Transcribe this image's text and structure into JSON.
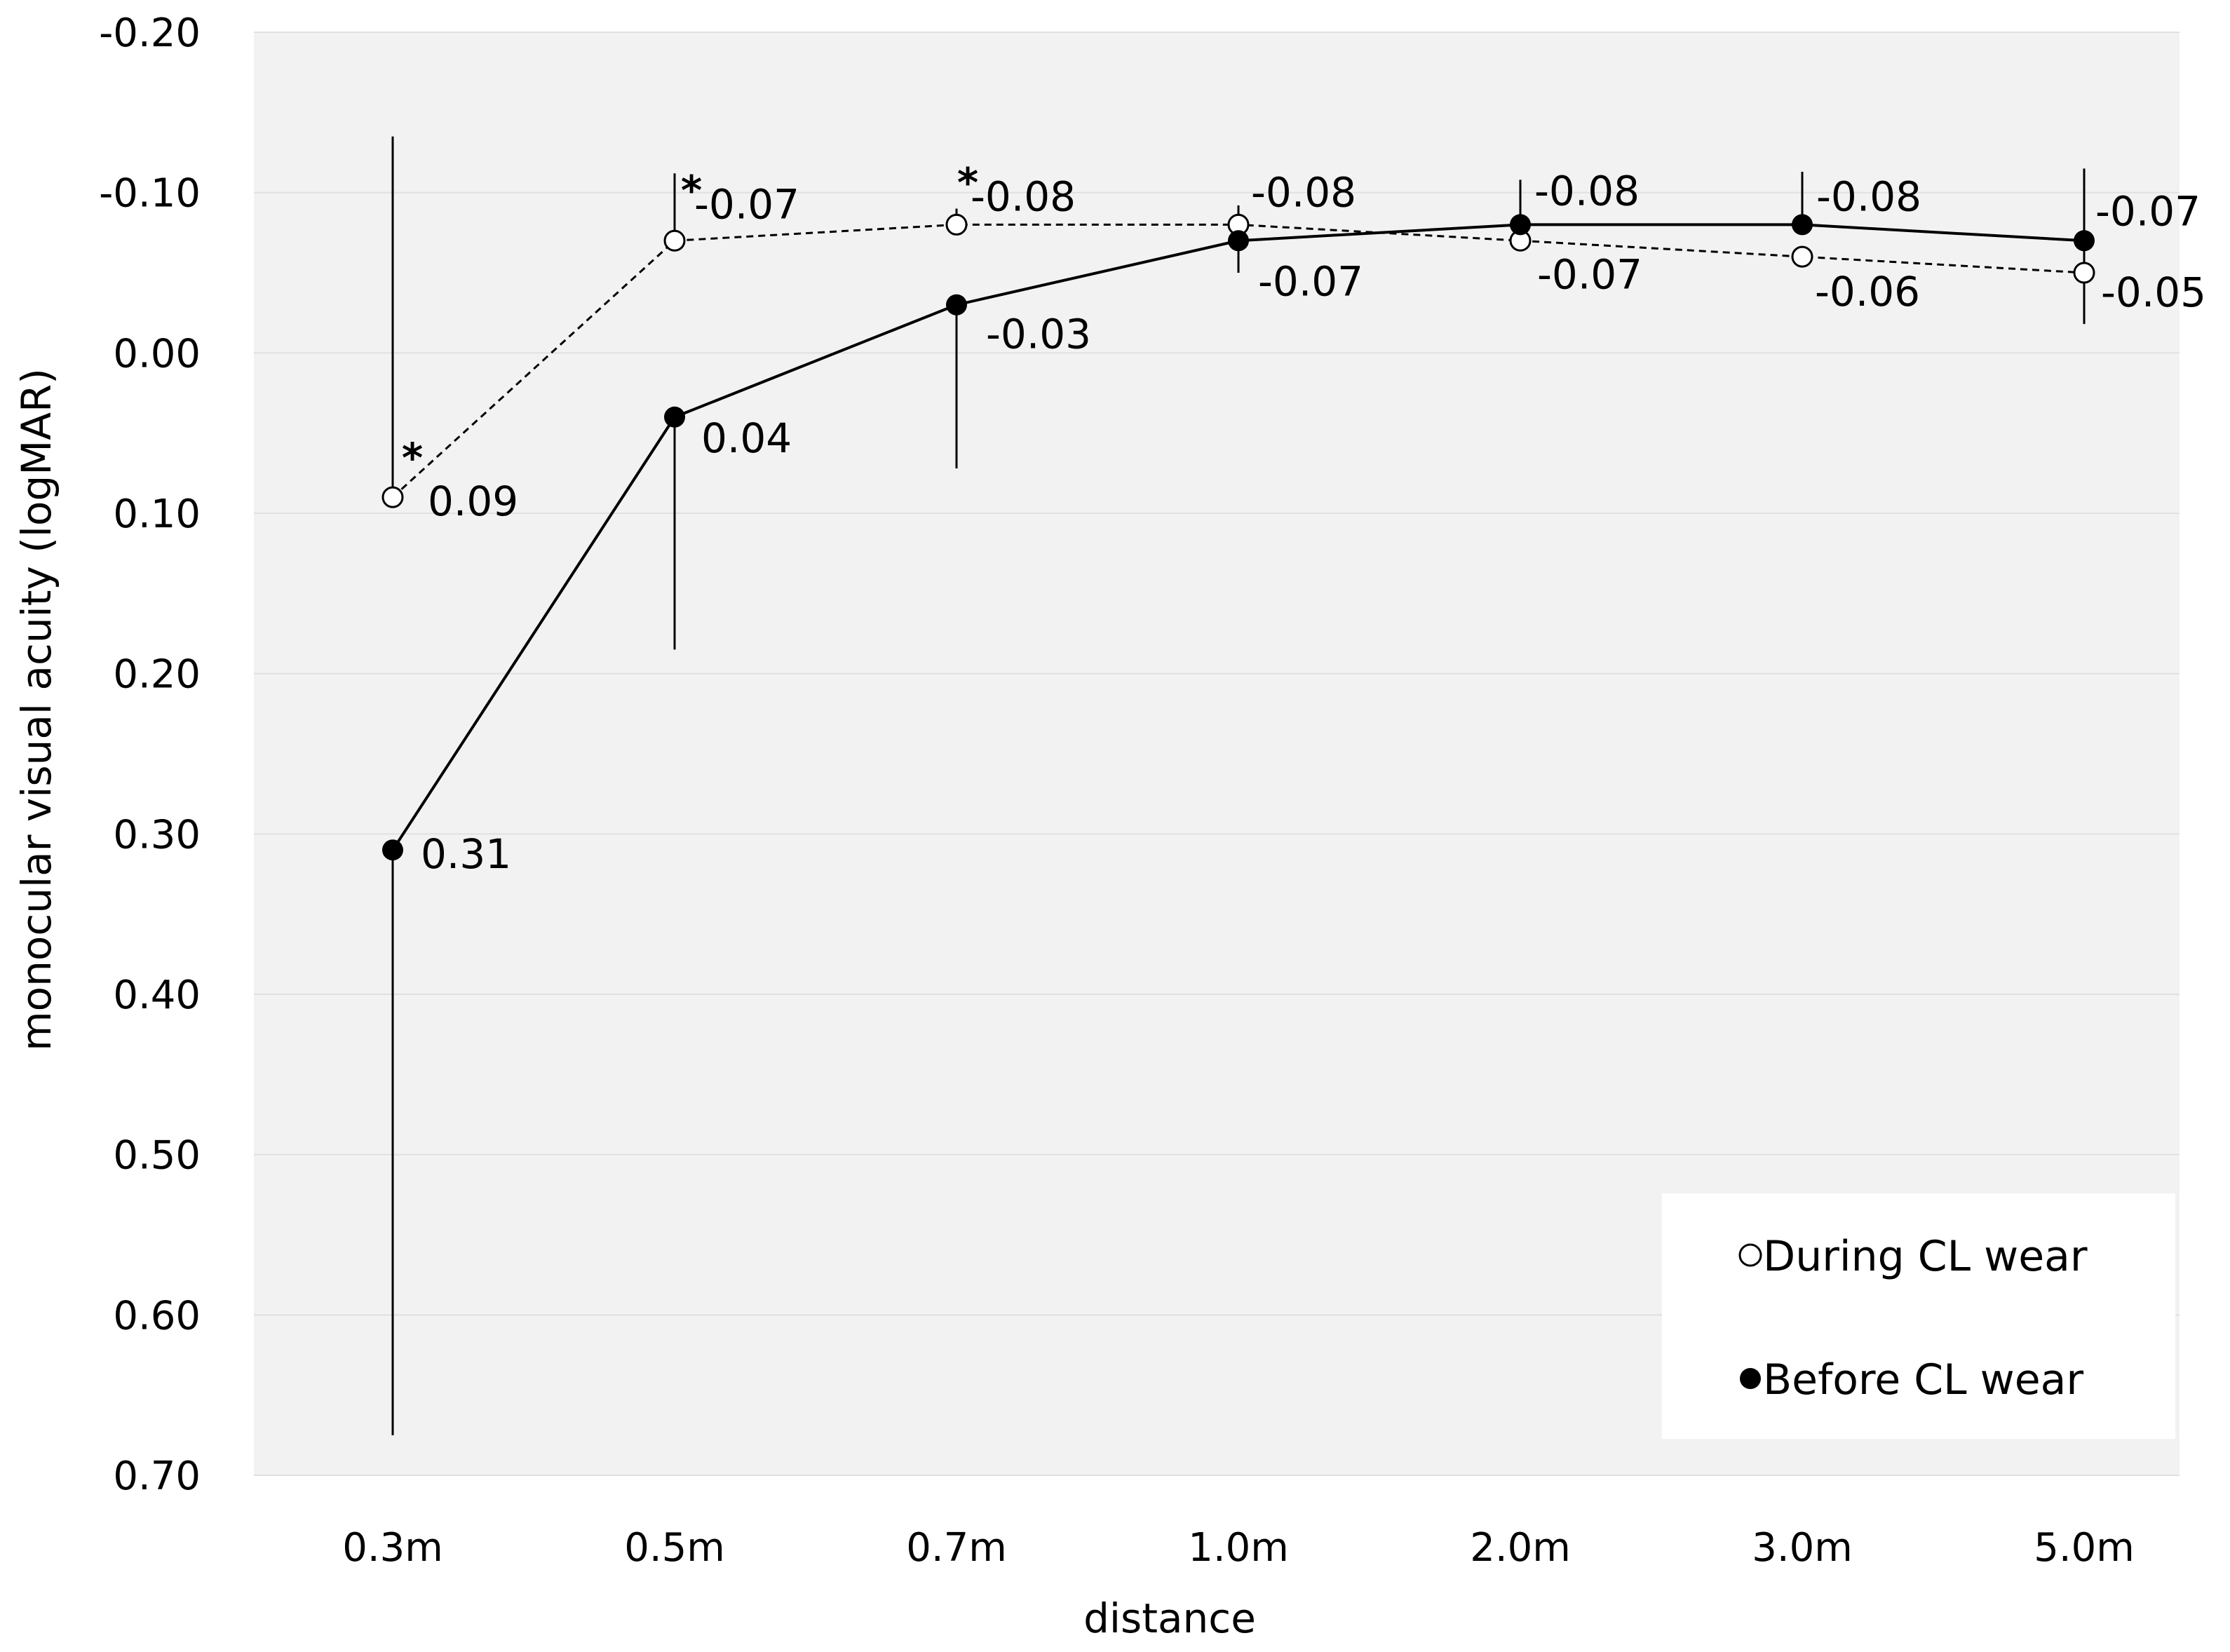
{
  "chart_data": {
    "type": "line",
    "title": "",
    "xlabel": "distance",
    "ylabel": "monocular visual acuity (logMAR)",
    "categories": [
      "0.3m",
      "0.5m",
      "0.7m",
      "1.0m",
      "2.0m",
      "3.0m",
      "5.0m"
    ],
    "ylim": [
      -0.2,
      0.7
    ],
    "y_inverted": true,
    "yticks": [
      "-0.20",
      "-0.10",
      "0.00",
      "0.10",
      "0.20",
      "0.30",
      "0.40",
      "0.50",
      "0.60",
      "0.70"
    ],
    "ytick_values": [
      -0.2,
      -0.1,
      0.0,
      0.1,
      0.2,
      0.3,
      0.4,
      0.5,
      0.6,
      0.7
    ],
    "grid": true,
    "legend_position": "bottom-right",
    "series": [
      {
        "name": "During CL wear",
        "marker": "open-circle",
        "line_style": "dashed",
        "values": [
          0.09,
          -0.07,
          -0.08,
          -0.08,
          -0.07,
          -0.06,
          -0.05
        ],
        "labels": [
          "0.09",
          "-0.07",
          "-0.08",
          "-0.08",
          "-0.07",
          "-0.06",
          "-0.05"
        ],
        "error_upper_end": [
          -0.135,
          -0.112,
          -0.09,
          -0.092,
          null,
          null,
          null
        ],
        "significant": [
          true,
          true,
          true,
          false,
          false,
          false,
          false
        ]
      },
      {
        "name": "Before CL wear",
        "marker": "filled-circle",
        "line_style": "solid",
        "values": [
          0.31,
          0.04,
          -0.03,
          -0.07,
          -0.08,
          -0.08,
          -0.07
        ],
        "labels": [
          "0.31",
          "0.04",
          "-0.03",
          "-0.07",
          "-0.08",
          "-0.08",
          "-0.07"
        ],
        "error_upper_end": [
          null,
          null,
          null,
          null,
          -0.108,
          -0.113,
          -0.115
        ],
        "error_lower_end": [
          0.675,
          0.185,
          0.072,
          -0.05,
          null,
          null,
          -0.018
        ]
      }
    ],
    "significance_marker": "*",
    "colors": {
      "plot_background": "#f2f2f2",
      "gridline": "#e0e0e0",
      "line": "#000000",
      "legend_background": "#ffffff"
    }
  }
}
